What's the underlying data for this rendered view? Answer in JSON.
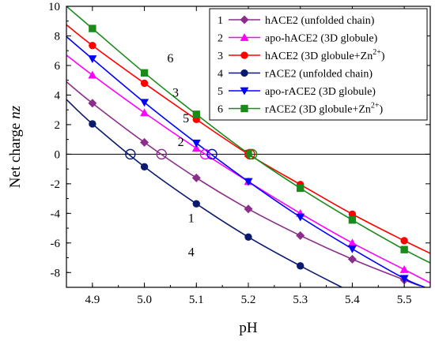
{
  "chart_data": {
    "type": "line",
    "xlabel": "pH",
    "ylabel": "Net charge",
    "ylabel_var": "nz",
    "xlim": [
      4.85,
      5.55
    ],
    "ylim": [
      -9,
      10
    ],
    "xticks": [
      "4.9",
      "5.0",
      "5.1",
      "5.2",
      "5.3",
      "5.4",
      "5.5"
    ],
    "yticks": [
      "10",
      "8",
      "6",
      "4",
      "2",
      "0",
      "-2",
      "-4",
      "-6",
      "-8"
    ],
    "legend_position": "top-right",
    "series": [
      {
        "id": "1",
        "name": "hACE2 (unfolded chain)",
        "name_main": "hACE2 (unfolded chain)",
        "name_sup": "",
        "color": "#8b2d8b",
        "marker": "diamond",
        "curve_label": "1",
        "line": [
          [
            4.85,
            4.9
          ],
          [
            4.9,
            3.45
          ],
          [
            5.0,
            0.8
          ],
          [
            5.1,
            -1.6
          ],
          [
            5.2,
            -3.7
          ],
          [
            5.3,
            -5.5
          ],
          [
            5.4,
            -7.1
          ],
          [
            5.5,
            -8.5
          ],
          [
            5.53,
            -8.9
          ]
        ],
        "x": [
          4.9,
          5.0,
          5.1,
          5.2,
          5.3,
          5.4,
          5.5
        ],
        "y": [
          3.45,
          0.8,
          -1.6,
          -3.7,
          -5.5,
          -7.1,
          -8.5
        ],
        "zero_crossing": 5.033
      },
      {
        "id": "2",
        "name": "apo-hACE2 (3D globule)",
        "name_main": "apo-hACE2 (3D globule)",
        "name_sup": "",
        "color": "#ff00ff",
        "marker": "triangle-up",
        "curve_label": "2",
        "line": [
          [
            4.85,
            6.7
          ],
          [
            4.9,
            5.35
          ],
          [
            5.0,
            2.8
          ],
          [
            5.1,
            0.4
          ],
          [
            5.2,
            -1.85
          ],
          [
            5.3,
            -4.0
          ],
          [
            5.4,
            -6.0
          ],
          [
            5.5,
            -7.8
          ],
          [
            5.55,
            -8.7
          ]
        ],
        "x": [
          4.9,
          5.0,
          5.1,
          5.2,
          5.3,
          5.4,
          5.5
        ],
        "y": [
          5.35,
          2.8,
          0.4,
          -1.85,
          -4.0,
          -6.0,
          -7.8
        ],
        "zero_crossing": 5.117
      },
      {
        "id": "3",
        "name": "hACE2 (3D globule+Zn2+)",
        "name_main": "hACE2 (3D globule+Zn",
        "name_sup": "2+",
        "name_tail": ")",
        "color": "#ff0000",
        "marker": "circle",
        "curve_label": "3",
        "line": [
          [
            4.85,
            8.75
          ],
          [
            4.9,
            7.35
          ],
          [
            5.0,
            4.8
          ],
          [
            5.1,
            2.35
          ],
          [
            5.2,
            0.0
          ],
          [
            5.3,
            -2.05
          ],
          [
            5.4,
            -4.05
          ],
          [
            5.5,
            -5.85
          ],
          [
            5.55,
            -6.7
          ]
        ],
        "x": [
          4.9,
          5.0,
          5.1,
          5.2,
          5.3,
          5.4,
          5.5
        ],
        "y": [
          7.35,
          4.8,
          2.35,
          0.0,
          -2.05,
          -4.05,
          -5.85
        ],
        "zero_crossing": 5.205
      },
      {
        "id": "4",
        "name": "rACE2 (unfolded chain)",
        "name_main": "rACE2 (unfolded chain)",
        "name_sup": "",
        "color": "#0a1a6e",
        "marker": "circle-filled",
        "curve_label": "4",
        "line": [
          [
            4.85,
            3.7
          ],
          [
            4.9,
            2.05
          ],
          [
            5.0,
            -0.85
          ],
          [
            5.1,
            -3.35
          ],
          [
            5.2,
            -5.6
          ],
          [
            5.3,
            -7.55
          ],
          [
            5.38,
            -9.0
          ]
        ],
        "x": [
          4.9,
          5.0,
          5.1,
          5.2,
          5.3
        ],
        "y": [
          2.05,
          -0.85,
          -3.35,
          -5.6,
          -7.55
        ],
        "zero_crossing": 4.973
      },
      {
        "id": "5",
        "name": "apo-rACE2 (3D globule)",
        "name_main": "apo-rACE2 (3D globule)",
        "name_sup": "",
        "color": "#0000ff",
        "marker": "triangle-down",
        "curve_label": "5",
        "line": [
          [
            4.85,
            7.95
          ],
          [
            4.9,
            6.45
          ],
          [
            5.0,
            3.5
          ],
          [
            5.1,
            0.75
          ],
          [
            5.2,
            -1.85
          ],
          [
            5.3,
            -4.25
          ],
          [
            5.4,
            -6.4
          ],
          [
            5.5,
            -8.4
          ],
          [
            5.54,
            -9.0
          ]
        ],
        "x": [
          4.9,
          5.0,
          5.1,
          5.2,
          5.3,
          5.4,
          5.5
        ],
        "y": [
          6.45,
          3.5,
          0.75,
          -1.85,
          -4.25,
          -6.4,
          -8.4
        ],
        "zero_crossing": 5.13
      },
      {
        "id": "6",
        "name": "rACE2 (3D globule+Zn2+)",
        "name_main": "rACE2 (3D globule+Zn",
        "name_sup": "2+",
        "name_tail": ")",
        "color": "#1a8a1a",
        "marker": "square",
        "curve_label": "6",
        "line": [
          [
            4.85,
            10.0
          ],
          [
            4.9,
            8.5
          ],
          [
            5.0,
            5.5
          ],
          [
            5.1,
            2.7
          ],
          [
            5.2,
            0.05
          ],
          [
            5.3,
            -2.3
          ],
          [
            5.4,
            -4.45
          ],
          [
            5.5,
            -6.45
          ],
          [
            5.55,
            -7.35
          ]
        ],
        "x": [
          4.9,
          5.0,
          5.1,
          5.2,
          5.3,
          5.4,
          5.5
        ],
        "y": [
          8.5,
          5.5,
          2.7,
          0.05,
          -2.3,
          -4.45,
          -6.45
        ],
        "zero_crossing": 5.205
      }
    ],
    "zero_crossing_markers": [
      {
        "x": 4.973,
        "color": "#0a1a6e"
      },
      {
        "x": 5.033,
        "color": "#8b2d8b"
      },
      {
        "x": 5.117,
        "color": "#ff00ff"
      },
      {
        "x": 5.13,
        "color": "#0000ff"
      },
      {
        "x": 5.203,
        "color": "#ff0000"
      },
      {
        "x": 5.207,
        "color": "#1a8a1a"
      }
    ],
    "curve_label_positions": [
      {
        "id": "1",
        "x": 5.09,
        "y": -4.6
      },
      {
        "id": "2",
        "x": 5.07,
        "y": 0.55
      },
      {
        "id": "3",
        "x": 5.06,
        "y": 3.9
      },
      {
        "id": "4",
        "x": 5.09,
        "y": -6.9
      },
      {
        "id": "5",
        "x": 5.08,
        "y": 2.15
      },
      {
        "id": "6",
        "x": 5.05,
        "y": 6.2
      }
    ]
  }
}
